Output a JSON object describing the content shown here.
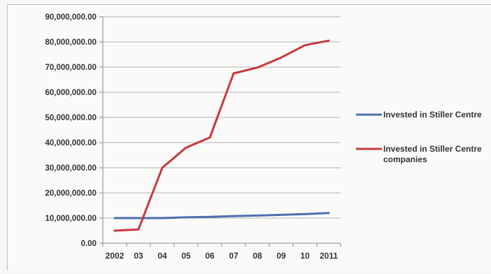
{
  "chart_data": {
    "type": "line",
    "categories": [
      "2002",
      "03",
      "04",
      "05",
      "06",
      "07",
      "08",
      "09",
      "10",
      "2011"
    ],
    "ylim": [
      0,
      90000000
    ],
    "yticks": [
      0,
      10000000,
      20000000,
      30000000,
      40000000,
      50000000,
      60000000,
      70000000,
      80000000,
      90000000
    ],
    "ytick_labels": [
      "0.00",
      "10,000,000.00",
      "20,000,000.00",
      "30,000,000.00",
      "40,000,000.00",
      "50,000,000.00",
      "60,000,000.00",
      "70,000,000.00",
      "80,000,000.00",
      "90,000,000.00"
    ],
    "grid": true,
    "legend_position": "right",
    "series": [
      {
        "name_lines": [
          "Invested in Stiller Centre"
        ],
        "color": "#4a6fb0",
        "values": [
          10000000,
          10000000,
          10000000,
          10300000,
          10500000,
          10800000,
          11000000,
          11300000,
          11600000,
          12000000
        ]
      },
      {
        "name_lines": [
          "Invested in Stiller Centre",
          "companies"
        ],
        "color": "#c8383d",
        "values": [
          5000000,
          5500000,
          30000000,
          38000000,
          42000000,
          67500000,
          69800000,
          73800000,
          78700000,
          80500000
        ]
      }
    ]
  }
}
